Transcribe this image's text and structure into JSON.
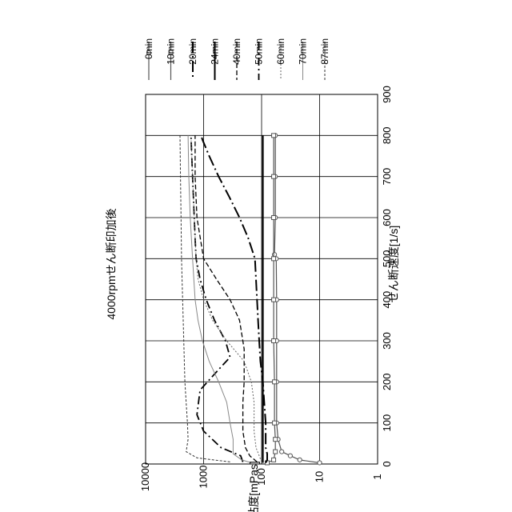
{
  "chart_data": {
    "type": "line",
    "title": "4000rpmせん断印加後",
    "xlabel": "せん断速度[1/s]",
    "ylabel": "粘度[mPas]",
    "xlim": [
      0,
      900
    ],
    "ylim": [
      1,
      10000
    ],
    "y_scale": "log",
    "x_ticks": [
      "0",
      "100",
      "200",
      "300",
      "400",
      "500",
      "600",
      "700",
      "800",
      "900"
    ],
    "y_ticks": [
      "1",
      "10",
      "100",
      "1000",
      "10000"
    ],
    "grid": true,
    "orientation": "rotated-90-cw",
    "legend_position": "top",
    "series": [
      {
        "name": "0min",
        "style": "solid-circle",
        "color": "#555555",
        "width": 1.2,
        "x": [
          3,
          10,
          20,
          30,
          60,
          100,
          200,
          300,
          400,
          500,
          510,
          600,
          700,
          800
        ],
        "y": [
          10,
          22,
          32,
          45,
          52,
          55,
          55,
          55,
          55,
          56,
          60,
          58,
          58,
          58
        ]
      },
      {
        "name": "10min",
        "style": "solid-square",
        "color": "#555555",
        "width": 1.2,
        "x": [
          3,
          10,
          30,
          60,
          100,
          200,
          300,
          400,
          500,
          600,
          700,
          800
        ],
        "y": [
          80,
          62,
          58,
          58,
          60,
          60,
          62,
          62,
          62,
          62,
          62,
          62
        ]
      },
      {
        "name": "20min",
        "style": "longdash-dot",
        "color": "#000000",
        "width": 2,
        "x": [
          3,
          10,
          25,
          40,
          60,
          100,
          150,
          200,
          250,
          300,
          350,
          400,
          450,
          500,
          550,
          600,
          650,
          700,
          750,
          790,
          800
        ],
        "y": [
          85,
          80,
          80,
          85,
          85,
          85,
          90,
          95,
          105,
          110,
          115,
          120,
          125,
          130,
          170,
          240,
          360,
          550,
          800,
          1050,
          1100
        ]
      },
      {
        "name": "24min",
        "style": "solid",
        "color": "#000000",
        "width": 2,
        "x": [
          3,
          10,
          25,
          60,
          100,
          200,
          300,
          400,
          500,
          600,
          700,
          800
        ],
        "y": [
          95,
          95,
          95,
          95,
          95,
          95,
          95,
          95,
          95,
          95,
          95,
          95
        ]
      },
      {
        "name": "40min",
        "style": "dashed",
        "color": "#000000",
        "width": 1.3,
        "x": [
          5,
          20,
          40,
          80,
          150,
          200,
          280,
          350,
          400,
          450,
          500,
          600,
          700,
          800
        ],
        "y": [
          120,
          160,
          190,
          210,
          210,
          200,
          200,
          240,
          350,
          600,
          1000,
          1300,
          1400,
          1400
        ]
      },
      {
        "name": "50min",
        "style": "dashdot",
        "color": "#000000",
        "width": 1.8,
        "x": [
          5,
          20,
          40,
          80,
          120,
          180,
          230,
          260,
          300,
          350,
          400,
          450,
          500,
          550,
          600,
          700,
          800
        ],
        "y": [
          210,
          230,
          500,
          1000,
          1300,
          1150,
          550,
          350,
          420,
          650,
          900,
          1150,
          1350,
          1400,
          1450,
          1550,
          1650
        ]
      },
      {
        "name": "60min",
        "style": "dotted",
        "color": "#666666",
        "width": 1,
        "x": [
          5,
          20,
          40,
          80,
          150,
          200,
          250,
          300,
          350,
          400,
          450,
          500,
          600,
          700,
          800
        ],
        "y": [
          100,
          110,
          125,
          135,
          135,
          150,
          200,
          400,
          700,
          1000,
          1250,
          1350,
          1450,
          1550,
          1650
        ]
      },
      {
        "name": "70min",
        "style": "solid-thin",
        "color": "#888888",
        "width": 1,
        "x": [
          3,
          10,
          25,
          60,
          100,
          150,
          200,
          250,
          300,
          350,
          400,
          500,
          600,
          700,
          800
        ],
        "y": [
          150,
          220,
          310,
          310,
          350,
          400,
          550,
          800,
          1050,
          1250,
          1400,
          1550,
          1700,
          1800,
          1850
        ]
      },
      {
        "name": "87min",
        "style": "fine-dash",
        "color": "#333333",
        "width": 1,
        "x": [
          5,
          15,
          30,
          60,
          100,
          150,
          200,
          300,
          400,
          500,
          600,
          700,
          800
        ],
        "y": [
          350,
          1300,
          2000,
          1850,
          1900,
          2000,
          2100,
          2200,
          2300,
          2400,
          2450,
          2500,
          2550
        ]
      }
    ]
  }
}
